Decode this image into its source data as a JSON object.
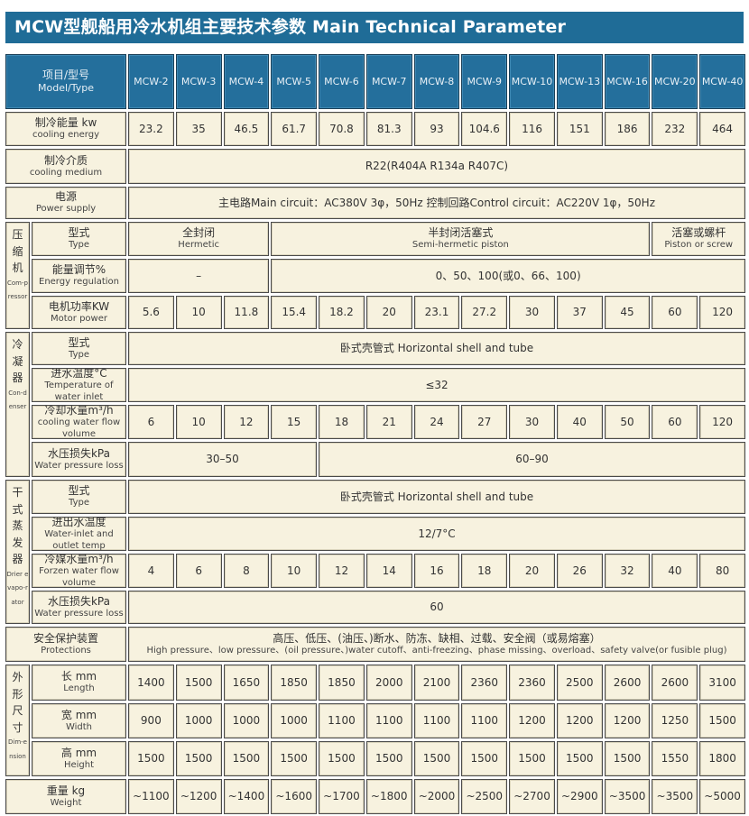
{
  "title": "MCW型舰船用冷水机组主要技术参数 Main Technical Parameter",
  "header": {
    "label_cn": "项目/型号",
    "label_en": "Model/Type",
    "models": [
      "MCW-2",
      "MCW-3",
      "MCW-4",
      "MCW-5",
      "MCW-6",
      "MCW-7",
      "MCW-8",
      "MCW-9",
      "MCW-10",
      "MCW-13",
      "MCW-16",
      "MCW-20",
      "MCW-40"
    ]
  },
  "colors": {
    "title_bg": "#1f6c97",
    "header_bg": "#246f9c",
    "cell_bg": "#f7f2df"
  },
  "groups": {
    "compressor": {
      "cn": "压缩机",
      "en": "Com-pressor"
    },
    "condenser": {
      "cn": "冷凝器",
      "en": "Con-denser"
    },
    "evaporator": {
      "cn": "干式蒸发器",
      "en": "Drier evapo-rator"
    },
    "dimension": {
      "cn": "外形尺寸",
      "en": "Dim-ension"
    }
  },
  "rows": [
    {
      "label_cn": "制冷能量 kw",
      "label_en": "cooling energy",
      "values": [
        "23.2",
        "35",
        "46.5",
        "61.7",
        "70.8",
        "81.3",
        "93",
        "104.6",
        "116",
        "151",
        "186",
        "232",
        "464"
      ]
    },
    {
      "label_cn": "制冷介质",
      "label_en": "cooling medium",
      "spans": [
        {
          "text": "R22(R404A  R134a  R407C)",
          "span": 13
        }
      ]
    },
    {
      "label_cn": "电源",
      "label_en": "Power supply",
      "spans": [
        {
          "text": "主电路Main circuit：AC380V 3φ，50Hz      控制回路Control circuit：AC220V 1φ，50Hz",
          "span": 13
        }
      ]
    },
    {
      "group": "compressor",
      "label_cn": "型式",
      "label_en": "Type",
      "spans": [
        {
          "text": "全封闭",
          "text_en": "Hermetic",
          "span": 3
        },
        {
          "text": "半封闭活塞式",
          "text_en": "Semi-hermetic piston",
          "span": 8
        },
        {
          "text": "活塞或螺杆",
          "text_en": "Piston or screw",
          "span": 2
        }
      ]
    },
    {
      "group": "compressor",
      "label_cn": "能量调节%",
      "label_en": "Energy regulation",
      "spans": [
        {
          "text": "–",
          "span": 3
        },
        {
          "text": "0、50、100(或0、66、100)",
          "span": 10
        }
      ]
    },
    {
      "group": "compressor",
      "label_cn": "电机功率KW",
      "label_en": "Motor power",
      "values": [
        "5.6",
        "10",
        "11.8",
        "15.4",
        "18.2",
        "20",
        "23.1",
        "27.2",
        "30",
        "37",
        "45",
        "60",
        "120"
      ]
    },
    {
      "group": "condenser",
      "label_cn": "型式",
      "label_en": "Type",
      "spans": [
        {
          "text": "卧式壳管式  Horizontal shell and tube",
          "span": 13
        }
      ]
    },
    {
      "group": "condenser",
      "label_cn": "进水温度°C",
      "label_en": "Temperature of water inlet",
      "spans": [
        {
          "text": "≤32",
          "span": 13
        }
      ]
    },
    {
      "group": "condenser",
      "label_cn": "冷却水量m³/h",
      "label_en": "cooling water flow volume",
      "values": [
        "6",
        "10",
        "12",
        "15",
        "18",
        "21",
        "24",
        "27",
        "30",
        "40",
        "50",
        "60",
        "120"
      ]
    },
    {
      "group": "condenser",
      "label_cn": "水压损失kPa",
      "label_en": "Water pressure loss",
      "spans": [
        {
          "text": "30–50",
          "span": 4
        },
        {
          "text": "60–90",
          "span": 9
        }
      ]
    },
    {
      "group": "evaporator",
      "label_cn": "型式",
      "label_en": "Type",
      "spans": [
        {
          "text": "卧式壳管式  Horizontal shell and tube",
          "span": 13
        }
      ]
    },
    {
      "group": "evaporator",
      "label_cn": "进出水温度",
      "label_en": "Water-inlet and outlet temp",
      "spans": [
        {
          "text": "12/7°C",
          "span": 13
        }
      ]
    },
    {
      "group": "evaporator",
      "label_cn": "冷媒水量m³/h",
      "label_en": "Forzen water flow volume",
      "values": [
        "4",
        "6",
        "8",
        "10",
        "12",
        "14",
        "16",
        "18",
        "20",
        "26",
        "32",
        "40",
        "80"
      ]
    },
    {
      "group": "evaporator",
      "label_cn": "水压损失kPa",
      "label_en": "Water pressure loss",
      "spans": [
        {
          "text": "60",
          "span": 13
        }
      ]
    },
    {
      "label_cn": "安全保护装置",
      "label_en": "Protections",
      "prot": true,
      "spans": [
        {
          "text": "高压、低压、(油压、)断水、防冻、缺相、过载、安全阀（或易熔塞）",
          "text_en": "High pressure、low pressure、(oil pressure、)water cutoff、anti-freezing、phase missing、overload、safety valve(or fusible plug)",
          "span": 13
        }
      ]
    },
    {
      "group": "dimension",
      "label_cn": "长 mm",
      "label_en": "Length",
      "values": [
        "1400",
        "1500",
        "1650",
        "1850",
        "1850",
        "2000",
        "2100",
        "2360",
        "2360",
        "2500",
        "2600",
        "2600",
        "3100"
      ]
    },
    {
      "group": "dimension",
      "label_cn": "宽 mm",
      "label_en": "Width",
      "values": [
        "900",
        "1000",
        "1000",
        "1000",
        "1100",
        "1100",
        "1100",
        "1100",
        "1200",
        "1200",
        "1200",
        "1250",
        "1500"
      ]
    },
    {
      "group": "dimension",
      "label_cn": "高 mm",
      "label_en": "Height",
      "values": [
        "1500",
        "1500",
        "1500",
        "1500",
        "1500",
        "1500",
        "1500",
        "1500",
        "1500",
        "1500",
        "1500",
        "1550",
        "1800"
      ]
    },
    {
      "label_cn": "重量 kg",
      "label_en": "Weight",
      "values": [
        "~1100",
        "~1200",
        "~1400",
        "~1600",
        "~1700",
        "~1800",
        "~2000",
        "~2500",
        "~2700",
        "~2900",
        "~3500",
        "~3500",
        "~5000"
      ]
    }
  ]
}
